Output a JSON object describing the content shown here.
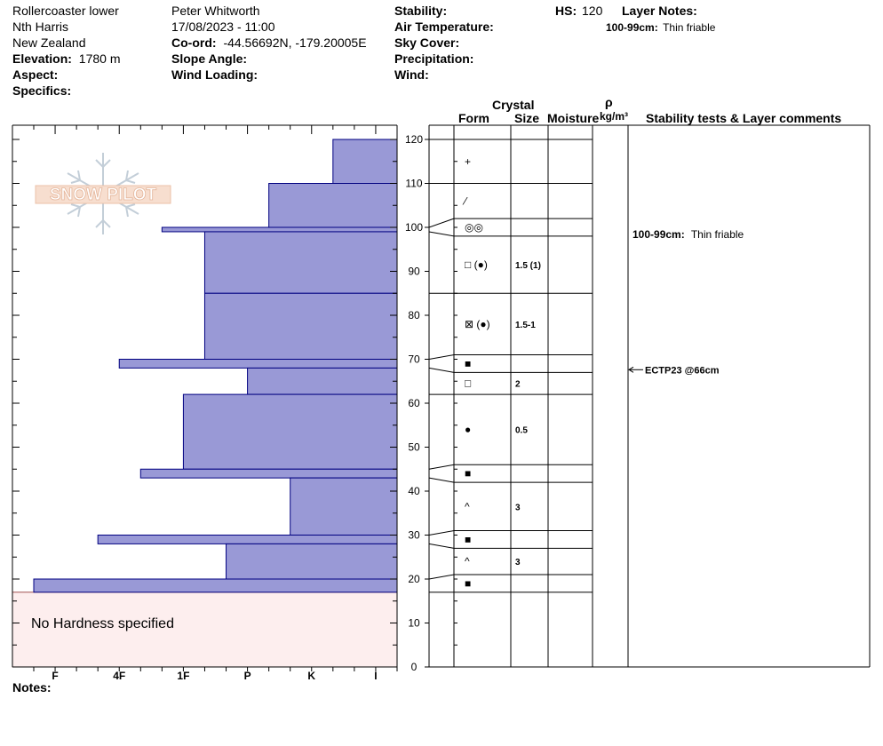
{
  "header": {
    "location": "Rollercoaster lower",
    "region": "Nth Harris",
    "country": "New Zealand",
    "elevation_label": "Elevation:",
    "elevation_value": "1780 m",
    "aspect_label": "Aspect:",
    "specifics_label": "Specifics:",
    "observer": "Peter Whitworth",
    "datetime": "17/08/2023 - 11:00",
    "coord_label": "Co-ord:",
    "coord_value": "-44.56692N, -179.20005E",
    "slope_label": "Slope Angle:",
    "wind_loading_label": "Wind Loading:",
    "stability_label": "Stability:",
    "air_temp_label": "Air Temperature:",
    "sky_label": "Sky Cover:",
    "precip_label": "Precipitation:",
    "wind_label": "Wind:",
    "hs_label": "HS:",
    "hs_value": "120",
    "layer_notes_label": "Layer Notes:",
    "layer_notes_key": "100-99cm:",
    "layer_notes_value": "Thin friable"
  },
  "columns": {
    "crystal": "Crystal",
    "form": "Form",
    "size": "Size",
    "moisture": "Moisture",
    "rho": "ρ",
    "density_unit": "kg/m³",
    "stability": "Stability tests & Layer comments"
  },
  "logo_text": "SNOW PILOT",
  "no_hardness": "No Hardness specified",
  "notes_label": "Notes:",
  "comment_key": "100-99cm:",
  "comment_value": "Thin friable",
  "test_result": "ECTP23 @66cm",
  "test_depth": 66,
  "colors": {
    "bar_fill": "#9999d6",
    "bar_stroke": "#000080",
    "no_hardness_fill": "#fdeeee",
    "no_hardness_stroke": "#a05050"
  },
  "chart_data": {
    "type": "bar",
    "title": "",
    "ylabel": "",
    "xlabel": "",
    "ylim": [
      0,
      120
    ],
    "y_ticks": [
      0,
      10,
      20,
      30,
      40,
      50,
      60,
      70,
      80,
      90,
      100,
      110,
      120
    ],
    "hardness_scale": [
      "I",
      "K",
      "P",
      "1F",
      "4F",
      "F"
    ],
    "hardness_scale_positions": [
      1,
      4,
      7,
      10,
      13,
      16
    ],
    "no_hardness_range": [
      0,
      17
    ],
    "layers": [
      {
        "top": 120,
        "bottom": 110,
        "hardness": 3
      },
      {
        "top": 110,
        "bottom": 100,
        "hardness": 6
      },
      {
        "top": 100,
        "bottom": 99,
        "hardness": 11
      },
      {
        "top": 99,
        "bottom": 85,
        "hardness": 9
      },
      {
        "top": 85,
        "bottom": 70,
        "hardness": 9
      },
      {
        "top": 70,
        "bottom": 68,
        "hardness": 13
      },
      {
        "top": 68,
        "bottom": 62,
        "hardness": 7
      },
      {
        "top": 62,
        "bottom": 45,
        "hardness": 10
      },
      {
        "top": 45,
        "bottom": 43,
        "hardness": 12
      },
      {
        "top": 43,
        "bottom": 30,
        "hardness": 5
      },
      {
        "top": 30,
        "bottom": 28,
        "hardness": 14
      },
      {
        "top": 28,
        "bottom": 20,
        "hardness": 8
      },
      {
        "top": 20,
        "bottom": 17,
        "hardness": 17
      }
    ],
    "profile_layers": [
      {
        "top": 120,
        "bottom": 110,
        "form": "+",
        "size": ""
      },
      {
        "top": 110,
        "bottom": 102,
        "form": "⁄",
        "size": ""
      },
      {
        "top": 102,
        "bottom": 98,
        "form": "◎◎",
        "size": ""
      },
      {
        "top": 98,
        "bottom": 85,
        "form": "□ (●)",
        "size": "1.5 (1)"
      },
      {
        "top": 85,
        "bottom": 71,
        "form": "⊠ (●)",
        "size": "1.5-1"
      },
      {
        "top": 71,
        "bottom": 67,
        "form": "■",
        "size": ""
      },
      {
        "top": 67,
        "bottom": 62,
        "form": "□",
        "size": "2"
      },
      {
        "top": 62,
        "bottom": 46,
        "form": "●",
        "size": "0.5"
      },
      {
        "top": 46,
        "bottom": 42,
        "form": "■",
        "size": ""
      },
      {
        "top": 42,
        "bottom": 31,
        "form": "^",
        "size": "3"
      },
      {
        "top": 31,
        "bottom": 27,
        "form": "■",
        "size": ""
      },
      {
        "top": 27,
        "bottom": 21,
        "form": "^",
        "size": "3"
      },
      {
        "top": 21,
        "bottom": 17,
        "form": "■",
        "size": ""
      }
    ]
  }
}
